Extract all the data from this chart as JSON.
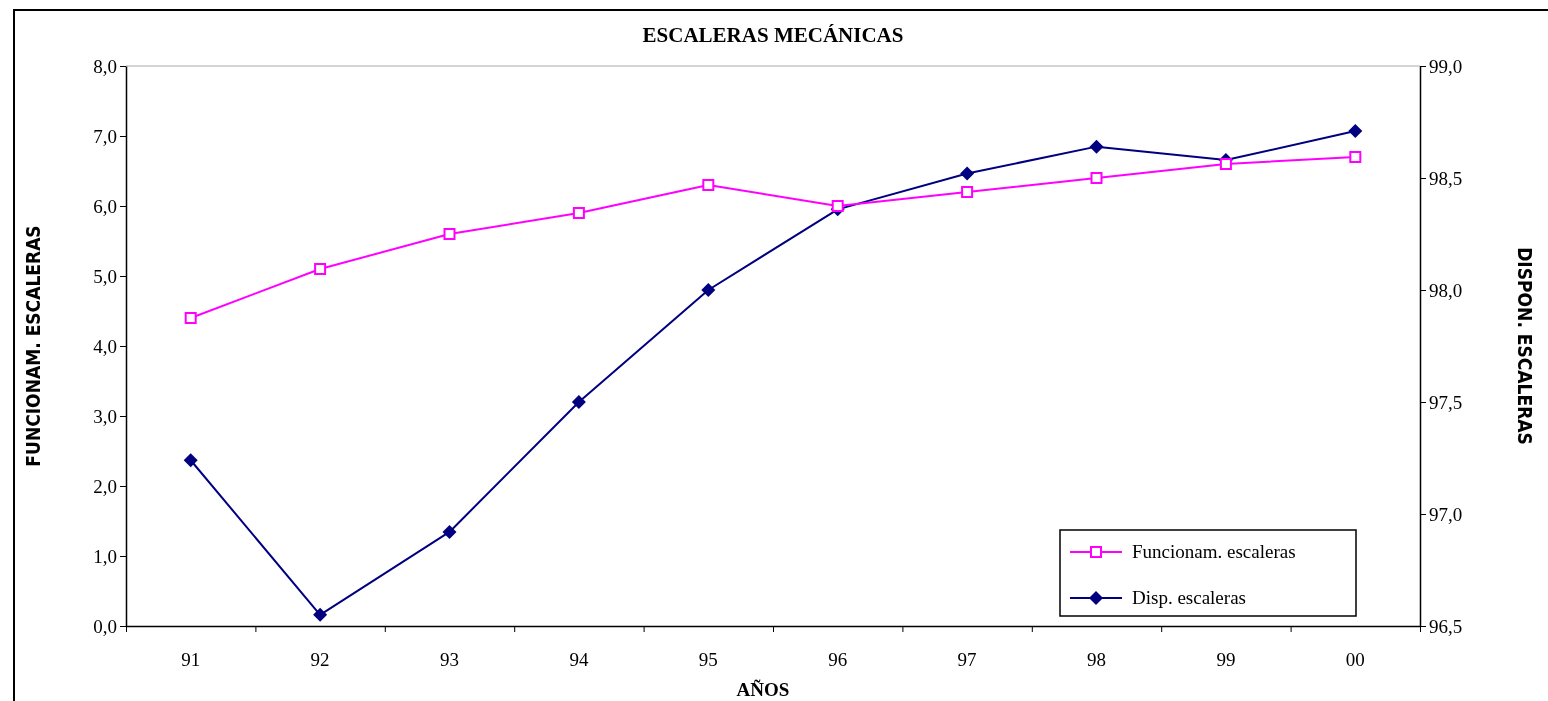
{
  "chart_data": {
    "type": "line",
    "title": "ESCALERAS MECÁNICAS",
    "xlabel": "AÑOS",
    "ylabel": "FUNCIONAM. ESCALERAS",
    "y2label": "DISPON. ESCALERAS",
    "categories": [
      "91",
      "92",
      "93",
      "94",
      "95",
      "96",
      "97",
      "98",
      "99",
      "00"
    ],
    "ylim": [
      0,
      8
    ],
    "yticks": [
      {
        "value": 0,
        "label": "0,0"
      },
      {
        "value": 1,
        "label": "1,0"
      },
      {
        "value": 2,
        "label": "2,0"
      },
      {
        "value": 3,
        "label": "3,0"
      },
      {
        "value": 4,
        "label": "4,0"
      },
      {
        "value": 5,
        "label": "5,0"
      },
      {
        "value": 6,
        "label": "6,0"
      },
      {
        "value": 7,
        "label": "7,0"
      },
      {
        "value": 8,
        "label": "8,0"
      }
    ],
    "y2lim": [
      96.5,
      99
    ],
    "y2ticks": [
      {
        "value": 96.5,
        "label": "96,5"
      },
      {
        "value": 97,
        "label": "97,0"
      },
      {
        "value": 97.5,
        "label": "97,5"
      },
      {
        "value": 98,
        "label": "98,0"
      },
      {
        "value": 98.5,
        "label": "98,5"
      },
      {
        "value": 99,
        "label": "99,0"
      }
    ],
    "legend": "bottom right",
    "grid": false,
    "line_style": "solid",
    "series": [
      {
        "name": "Funcionam. escaleras",
        "color": "#ff00ff",
        "marker": "square",
        "values": [
          4.4,
          5.1,
          5.6,
          5.9,
          6.3,
          6.0,
          6.2,
          6.4,
          6.6,
          6.7
        ]
      },
      {
        "name": "Disp. escaleras",
        "color": "#000080",
        "marker": "diamond",
        "axis": "y2",
        "values": [
          97.24,
          96.55,
          96.92,
          97.5,
          98.0,
          98.36,
          98.52,
          98.64,
          98.58,
          98.71
        ]
      }
    ]
  }
}
